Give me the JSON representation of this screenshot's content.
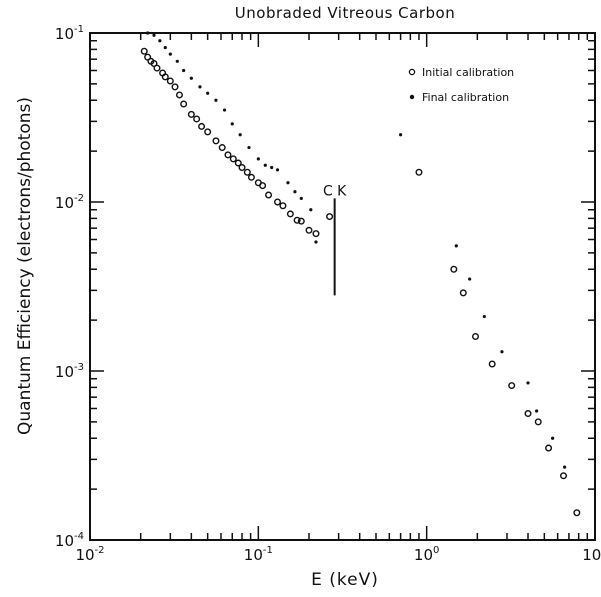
{
  "chart_data": {
    "type": "scatter",
    "title": "Unobraded Vitreous Carbon",
    "xlabel": "E  (keV)",
    "ylabel": "Quantum Efficiency (electrons/photons)",
    "xscale": "log",
    "yscale": "log",
    "xlim": [
      0.01,
      10
    ],
    "ylim": [
      0.0001,
      0.1
    ],
    "x_ticks": [
      {
        "value": 0.01,
        "label": "10-2"
      },
      {
        "value": 0.1,
        "label": "10-1"
      },
      {
        "value": 1,
        "label": "100"
      },
      {
        "value": 10,
        "label": "101"
      }
    ],
    "y_ticks": [
      {
        "value": 0.0001,
        "label": "10-4"
      },
      {
        "value": 0.001,
        "label": "10-3"
      },
      {
        "value": 0.01,
        "label": "10-2"
      },
      {
        "value": 0.1,
        "label": "10-1"
      }
    ],
    "legend_position": "top-right",
    "annotation": {
      "label": "C  K",
      "x": 0.284
    },
    "series": [
      {
        "name": "Initial calibration",
        "marker": "circle",
        "points": [
          [
            0.021,
            0.078
          ],
          [
            0.022,
            0.072
          ],
          [
            0.023,
            0.068
          ],
          [
            0.024,
            0.066
          ],
          [
            0.025,
            0.062
          ],
          [
            0.027,
            0.058
          ],
          [
            0.028,
            0.055
          ],
          [
            0.03,
            0.052
          ],
          [
            0.032,
            0.048
          ],
          [
            0.034,
            0.043
          ],
          [
            0.036,
            0.038
          ],
          [
            0.04,
            0.033
          ],
          [
            0.043,
            0.031
          ],
          [
            0.046,
            0.028
          ],
          [
            0.05,
            0.026
          ],
          [
            0.056,
            0.023
          ],
          [
            0.061,
            0.021
          ],
          [
            0.066,
            0.019
          ],
          [
            0.071,
            0.018
          ],
          [
            0.076,
            0.017
          ],
          [
            0.08,
            0.016
          ],
          [
            0.086,
            0.015
          ],
          [
            0.091,
            0.014
          ],
          [
            0.1,
            0.013
          ],
          [
            0.106,
            0.0125
          ],
          [
            0.115,
            0.011
          ],
          [
            0.13,
            0.01
          ],
          [
            0.14,
            0.0095
          ],
          [
            0.155,
            0.0085
          ],
          [
            0.17,
            0.0078
          ],
          [
            0.18,
            0.0077
          ],
          [
            0.2,
            0.0068
          ],
          [
            0.22,
            0.0065
          ],
          [
            0.265,
            0.0082
          ],
          [
            0.9,
            0.015
          ],
          [
            1.45,
            0.004
          ],
          [
            1.65,
            0.0029
          ],
          [
            1.95,
            0.0016
          ],
          [
            2.45,
            0.0011
          ],
          [
            3.2,
            0.00082
          ],
          [
            4.0,
            0.00056
          ],
          [
            4.6,
            0.0005
          ],
          [
            5.3,
            0.00035
          ],
          [
            6.5,
            0.00024
          ],
          [
            7.8,
            0.000145
          ]
        ]
      },
      {
        "name": "Final calibration",
        "marker": "dot",
        "points": [
          [
            0.022,
            0.1
          ],
          [
            0.024,
            0.097
          ],
          [
            0.026,
            0.09
          ],
          [
            0.028,
            0.082
          ],
          [
            0.03,
            0.075
          ],
          [
            0.033,
            0.068
          ],
          [
            0.036,
            0.06
          ],
          [
            0.04,
            0.054
          ],
          [
            0.045,
            0.048
          ],
          [
            0.05,
            0.044
          ],
          [
            0.056,
            0.04
          ],
          [
            0.063,
            0.035
          ],
          [
            0.07,
            0.029
          ],
          [
            0.078,
            0.025
          ],
          [
            0.088,
            0.021
          ],
          [
            0.1,
            0.018
          ],
          [
            0.11,
            0.0165
          ],
          [
            0.12,
            0.016
          ],
          [
            0.13,
            0.0155
          ],
          [
            0.15,
            0.013
          ],
          [
            0.165,
            0.0115
          ],
          [
            0.18,
            0.0105
          ],
          [
            0.205,
            0.009
          ],
          [
            0.22,
            0.0058
          ],
          [
            0.7,
            0.025
          ],
          [
            1.5,
            0.0055
          ],
          [
            1.8,
            0.0035
          ],
          [
            2.2,
            0.0021
          ],
          [
            2.8,
            0.0013
          ],
          [
            4.0,
            0.00085
          ],
          [
            4.5,
            0.00058
          ],
          [
            5.6,
            0.0004
          ],
          [
            6.6,
            0.00027
          ]
        ]
      }
    ]
  }
}
